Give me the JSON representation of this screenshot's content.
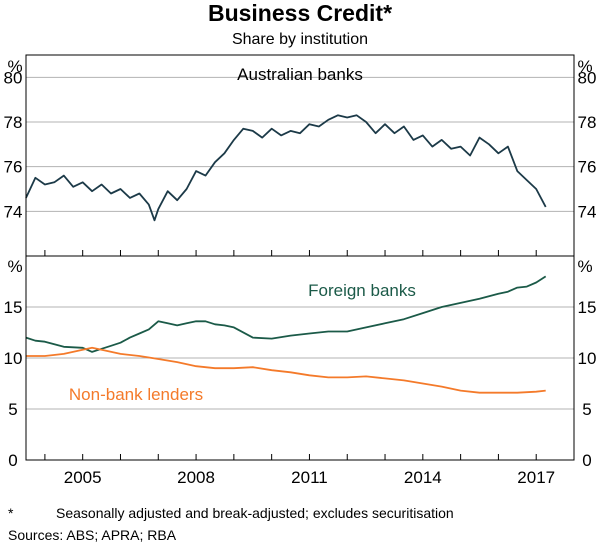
{
  "title": "Business Credit*",
  "subtitle": "Share by institution",
  "footnote": {
    "marker": "*",
    "text": "Seasonally adjusted and break-adjusted; excludes securitisation"
  },
  "sources": "Sources: ABS; APRA; RBA",
  "colors": {
    "australian_banks": "#1c3a48",
    "foreign_banks": "#1b5a48",
    "non_bank_lenders": "#f47a2a",
    "axes": "#000000"
  },
  "chart_data": [
    {
      "type": "line",
      "panel": "top",
      "unit_label": "%",
      "ylim": [
        72,
        81
      ],
      "yticks": [
        74,
        76,
        78,
        80
      ],
      "xlim": [
        2003.5,
        2018.0
      ],
      "xticks": [
        2005,
        2008,
        2011,
        2014,
        2017
      ],
      "grid": true,
      "annotations": [
        "Australian banks"
      ],
      "series": [
        {
          "name": "Australian banks",
          "x": [
            2003.5,
            2003.75,
            2004.0,
            2004.25,
            2004.5,
            2004.75,
            2005.0,
            2005.25,
            2005.5,
            2005.75,
            2006.0,
            2006.25,
            2006.5,
            2006.75,
            2006.9,
            2007.0,
            2007.25,
            2007.5,
            2007.75,
            2008.0,
            2008.25,
            2008.5,
            2008.75,
            2009.0,
            2009.25,
            2009.5,
            2009.75,
            2010.0,
            2010.25,
            2010.5,
            2010.75,
            2011.0,
            2011.25,
            2011.5,
            2011.75,
            2012.0,
            2012.25,
            2012.5,
            2012.75,
            2013.0,
            2013.25,
            2013.5,
            2013.75,
            2014.0,
            2014.25,
            2014.5,
            2014.75,
            2015.0,
            2015.25,
            2015.5,
            2015.75,
            2016.0,
            2016.25,
            2016.5,
            2016.75,
            2017.0,
            2017.25
          ],
          "values": [
            74.6,
            75.5,
            75.2,
            75.3,
            75.6,
            75.1,
            75.3,
            74.9,
            75.2,
            74.8,
            75.0,
            74.6,
            74.8,
            74.3,
            73.6,
            74.1,
            74.9,
            74.5,
            75.0,
            75.8,
            75.6,
            76.2,
            76.6,
            77.2,
            77.7,
            77.6,
            77.3,
            77.7,
            77.4,
            77.6,
            77.5,
            77.9,
            77.8,
            78.1,
            78.3,
            78.2,
            78.3,
            78.0,
            77.5,
            77.9,
            77.5,
            77.8,
            77.2,
            77.4,
            76.9,
            77.2,
            76.8,
            76.9,
            76.5,
            77.3,
            77.0,
            76.6,
            76.9,
            75.8,
            75.4,
            75.0,
            74.2
          ]
        }
      ]
    },
    {
      "type": "line",
      "panel": "bottom",
      "unit_label": "%",
      "ylim": [
        0,
        20
      ],
      "yticks": [
        0,
        5,
        10,
        15
      ],
      "xlim": [
        2003.5,
        2018.0
      ],
      "xticks": [
        2005,
        2008,
        2011,
        2014,
        2017
      ],
      "xtick_labels": [
        "2005",
        "2008",
        "2011",
        "2014",
        "2017"
      ],
      "grid": true,
      "annotations": [
        "Foreign banks",
        "Non-bank lenders"
      ],
      "series": [
        {
          "name": "Foreign banks",
          "x": [
            2003.5,
            2003.75,
            2004.0,
            2004.5,
            2005.0,
            2005.25,
            2005.5,
            2005.75,
            2006.0,
            2006.25,
            2006.5,
            2006.75,
            2007.0,
            2007.25,
            2007.5,
            2007.75,
            2008.0,
            2008.25,
            2008.5,
            2008.75,
            2009.0,
            2009.5,
            2010.0,
            2010.5,
            2011.0,
            2011.5,
            2012.0,
            2012.5,
            2013.0,
            2013.5,
            2014.0,
            2014.5,
            2015.0,
            2015.5,
            2016.0,
            2016.25,
            2016.5,
            2016.75,
            2017.0,
            2017.25
          ],
          "values": [
            12.0,
            11.7,
            11.6,
            11.1,
            11.0,
            10.6,
            10.9,
            11.2,
            11.5,
            12.0,
            12.4,
            12.8,
            13.6,
            13.4,
            13.2,
            13.4,
            13.6,
            13.6,
            13.3,
            13.2,
            13.0,
            12.0,
            11.9,
            12.2,
            12.4,
            12.6,
            12.6,
            13.0,
            13.4,
            13.8,
            14.4,
            15.0,
            15.4,
            15.8,
            16.3,
            16.5,
            16.9,
            17.0,
            17.4,
            18.0
          ]
        },
        {
          "name": "Non-bank lenders",
          "x": [
            2003.5,
            2004.0,
            2004.5,
            2005.0,
            2005.25,
            2005.5,
            2006.0,
            2006.5,
            2007.0,
            2007.5,
            2008.0,
            2008.5,
            2009.0,
            2009.5,
            2010.0,
            2010.5,
            2011.0,
            2011.5,
            2012.0,
            2012.5,
            2013.0,
            2013.5,
            2014.0,
            2014.5,
            2015.0,
            2015.5,
            2016.0,
            2016.5,
            2017.0,
            2017.25
          ],
          "values": [
            10.2,
            10.2,
            10.4,
            10.8,
            11.0,
            10.8,
            10.4,
            10.2,
            9.9,
            9.6,
            9.2,
            9.0,
            9.0,
            9.1,
            8.8,
            8.6,
            8.3,
            8.1,
            8.1,
            8.2,
            8.0,
            7.8,
            7.5,
            7.2,
            6.8,
            6.6,
            6.6,
            6.6,
            6.7,
            6.8
          ]
        }
      ]
    }
  ]
}
